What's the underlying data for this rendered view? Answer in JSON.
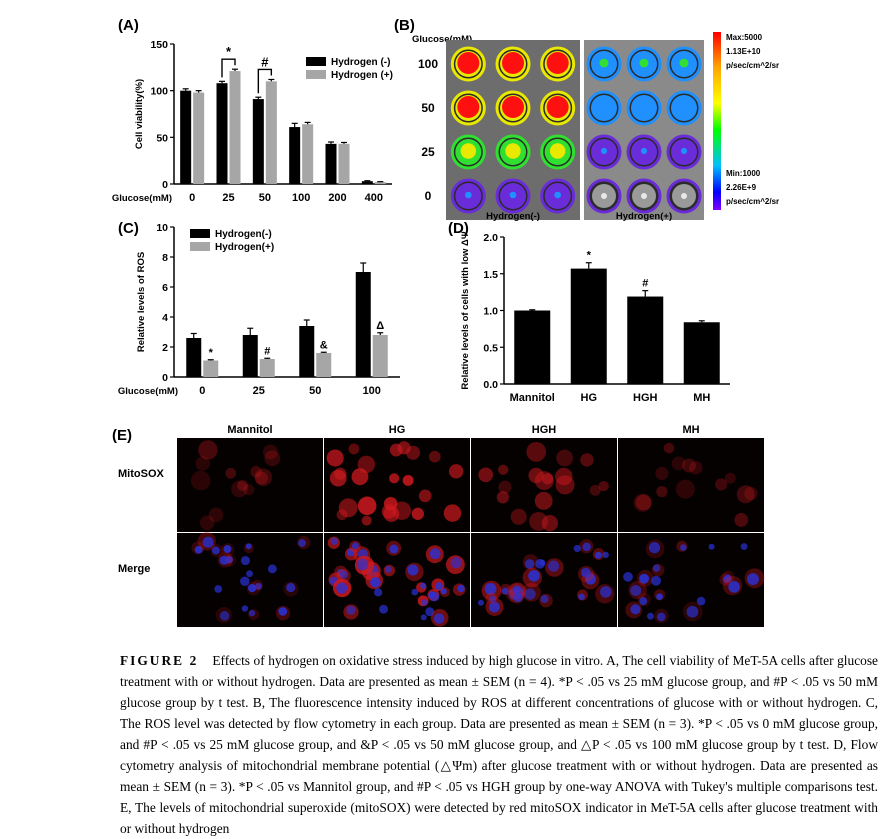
{
  "figure_caption": {
    "label": "FIGURE 2",
    "text": "Effects of hydrogen on oxidative stress induced by high glucose in vitro. A, The cell viability of MeT-5A cells after glucose treatment with or without hydrogen. Data are presented as mean ± SEM (n = 4). *P < .05 vs 25 mM glucose group, and #P < .05 vs 50 mM glucose group by t test. B, The fluorescence intensity induced by ROS at different concentrations of glucose with or without hydrogen. C, The ROS level was detected by flow cytometry in each group. Data are presented as mean ± SEM (n = 3). *P < .05 vs 0 mM glucose group, and #P < .05 vs 25 mM glucose group, and &P < .05 vs 50 mM glucose group, and △P < .05 vs 100 mM glucose group by t test. D, Flow cytometry analysis of mitochondrial membrane potential (△Ψm) after glucose treatment with or without hydrogen. Data are presented as mean ± SEM (n = 3). *P < .05 vs Mannitol group, and #P < .05 vs HGH group by one-way ANOVA with Tukey's multiple comparisons test. E, The levels of mitochondrial superoxide (mitoSOX) were detected by red mitoSOX indicator in MeT-5A cells after glucose treatment with or without hydrogen"
  },
  "colors": {
    "black": "#000000",
    "grey": "#a6a6a6",
    "red_stain": "#d0191f",
    "blue_stain": "#2a32d8"
  },
  "chart_data": [
    {
      "panel": "(A)",
      "type": "bar",
      "ylabel": "Cell viability(%)",
      "xlabel_prefix": "Glucose(mM)",
      "categories": [
        "0",
        "25",
        "50",
        "100",
        "200",
        "400"
      ],
      "ylim": [
        0,
        150
      ],
      "yticks": [
        0,
        50,
        100,
        150
      ],
      "series": [
        {
          "name": "Hydrogen (-)",
          "color": "#000000",
          "values": [
            100,
            108,
            91,
            61,
            43,
            3
          ],
          "errors": [
            2,
            2,
            2,
            4,
            2,
            0.5
          ]
        },
        {
          "name": "Hydrogen (+)",
          "color": "#a6a6a6",
          "values": [
            98,
            121,
            110,
            64,
            43,
            2
          ],
          "errors": [
            2,
            2,
            2,
            2,
            1.5,
            0.5
          ]
        }
      ],
      "annotations": [
        {
          "text": "*",
          "category": "25"
        },
        {
          "text": "#",
          "category": "50"
        }
      ],
      "legend": "top-right"
    },
    {
      "panel": "(C)",
      "type": "bar",
      "ylabel": "Relative levels of ROS",
      "xlabel_prefix": "Glucose(mM)",
      "categories": [
        "0",
        "25",
        "50",
        "100"
      ],
      "ylim": [
        0,
        10
      ],
      "yticks": [
        0,
        2,
        4,
        6,
        8,
        10
      ],
      "series": [
        {
          "name": "Hydrogen(-)",
          "color": "#000000",
          "values": [
            2.6,
            2.8,
            3.4,
            7.0
          ],
          "errors": [
            0.3,
            0.45,
            0.4,
            0.6
          ]
        },
        {
          "name": "Hydrogen(+)",
          "color": "#a6a6a6",
          "values": [
            1.1,
            1.2,
            1.6,
            2.8
          ],
          "errors": [
            0.05,
            0.05,
            0.05,
            0.15
          ]
        }
      ],
      "annotations": [
        {
          "text": "*",
          "category": "0"
        },
        {
          "text": "#",
          "category": "25"
        },
        {
          "text": "&",
          "category": "50"
        },
        {
          "text": "Δ",
          "category": "100"
        }
      ],
      "legend": "top-left"
    },
    {
      "panel": "(D)",
      "type": "bar",
      "ylabel": "Relative levels of cells with low ΔΨ",
      "categories": [
        "Mannitol",
        "HG",
        "HGH",
        "MH"
      ],
      "ylim": [
        0,
        2.0
      ],
      "yticks": [
        0.0,
        0.5,
        1.0,
        1.5,
        2.0
      ],
      "series": [
        {
          "color": "#000000",
          "values": [
            1.0,
            1.57,
            1.19,
            0.84
          ],
          "errors": [
            0.01,
            0.08,
            0.08,
            0.02
          ]
        }
      ],
      "annotations": [
        {
          "text": "*",
          "category": "HG"
        },
        {
          "text": "#",
          "category": "HGH"
        }
      ]
    }
  ],
  "panel_b": {
    "label": "(B)",
    "axis_title": "Glucose(mM)",
    "rows": [
      "100",
      "50",
      "25",
      "0"
    ],
    "columns": [
      "Hydrogen(-)",
      "Hydrogen(+)"
    ],
    "colorbar": {
      "max_line1": "Max:5000",
      "max_line2": "1.13E+10",
      "max_line3": "p/sec/cm^2/sr",
      "min_line1": "Min:1000",
      "min_line2": "2.26E+9",
      "min_line3": "p/sec/cm^2/sr"
    },
    "intensity_minus": [
      1.0,
      0.95,
      0.6,
      0.2
    ],
    "intensity_plus": [
      0.3,
      0.25,
      0.18,
      0.1
    ]
  },
  "panel_e": {
    "label": "(E)",
    "columns": [
      "Mannitol",
      "HG",
      "HGH",
      "MH"
    ],
    "rows": [
      "MitoSOX",
      "Merge"
    ],
    "red_intensity": [
      0.25,
      1.0,
      0.55,
      0.3
    ]
  }
}
